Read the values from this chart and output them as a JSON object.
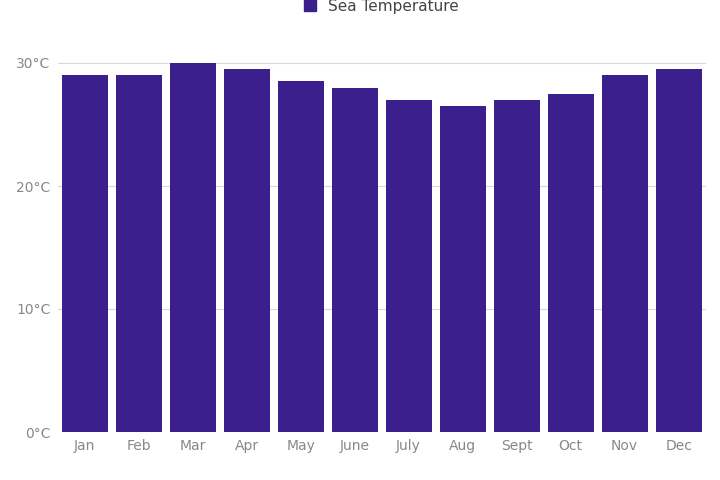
{
  "months": [
    "Jan",
    "Feb",
    "Mar",
    "Apr",
    "May",
    "June",
    "July",
    "Aug",
    "Sept",
    "Oct",
    "Nov",
    "Dec"
  ],
  "temperatures": [
    29.0,
    29.0,
    30.0,
    29.5,
    28.5,
    28.0,
    27.0,
    26.5,
    27.0,
    27.5,
    29.0,
    29.5
  ],
  "bar_color": "#3b1f8c",
  "background_color": "#ffffff",
  "legend_label": "Sea Temperature",
  "legend_marker_color": "#3b1f8c",
  "ytick_labels": [
    "0°C",
    "10°C",
    "20°C",
    "30°C"
  ],
  "ytick_values": [
    0,
    10,
    20,
    30
  ],
  "ylim": [
    0,
    32
  ],
  "grid_color": "#d8d8d8",
  "tick_label_color": "#888888",
  "legend_text_color": "#444444",
  "bar_width": 0.85
}
